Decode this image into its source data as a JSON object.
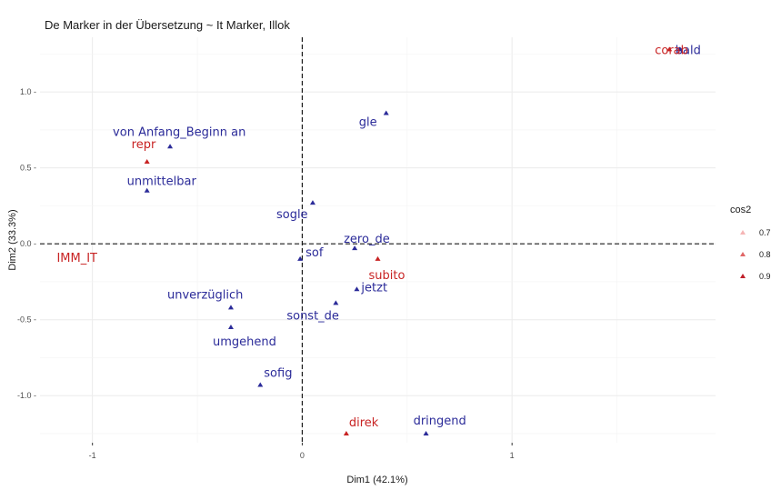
{
  "chart_data": {
    "type": "scatter",
    "title": "De Marker in der Übersetzung ~ It Marker, Illok",
    "xlabel": "Dim1 (42.1%)",
    "ylabel": "Dim2 (33.3%)",
    "xlim": [
      -1.25,
      1.97
    ],
    "ylim": [
      -1.31,
      1.36
    ],
    "xticks": [
      -1,
      0,
      1
    ],
    "xtick_labels": [
      "-1",
      "0",
      "1"
    ],
    "yticks": [
      -1.0,
      -0.5,
      0.0,
      0.5,
      1.0
    ],
    "ytick_labels": [
      "-1.0 -",
      "-0.5 -",
      "0.0 -",
      "0.5 -",
      "1.0 -"
    ],
    "reference_lines": {
      "x": 0,
      "y": 0
    },
    "grid": true,
    "legend": {
      "title": "cos2",
      "position": "right",
      "entries": [
        {
          "label": "0.7",
          "color": "#f5b5b5"
        },
        {
          "label": "0.8",
          "color": "#e06666"
        },
        {
          "label": "0.9",
          "color": "#c0202a"
        }
      ]
    },
    "colors": {
      "blue_group": "#2b2b99",
      "red_group": "#c82323"
    },
    "points": [
      {
        "label": "von Anfang_Beginn an",
        "x": -0.63,
        "y": 0.64,
        "group": "blue"
      },
      {
        "label": "unmittelbar",
        "x": -0.74,
        "y": 0.35,
        "group": "blue"
      },
      {
        "label": "gle",
        "x": 0.4,
        "y": 0.86,
        "group": "blue"
      },
      {
        "label": "sogle",
        "x": 0.05,
        "y": 0.27,
        "group": "blue"
      },
      {
        "label": "zero_de",
        "x": 0.25,
        "y": -0.03,
        "group": "blue"
      },
      {
        "label": "sof",
        "x": -0.01,
        "y": -0.1,
        "group": "blue"
      },
      {
        "label": "jetzt",
        "x": 0.26,
        "y": -0.3,
        "group": "blue"
      },
      {
        "label": "sonst_de",
        "x": 0.16,
        "y": -0.39,
        "group": "blue"
      },
      {
        "label": "unverzüglich",
        "x": -0.34,
        "y": -0.42,
        "group": "blue"
      },
      {
        "label": "umgehend",
        "x": -0.34,
        "y": -0.55,
        "group": "blue"
      },
      {
        "label": "sofig",
        "x": -0.2,
        "y": -0.93,
        "group": "blue"
      },
      {
        "label": "dringend",
        "x": 0.59,
        "y": -1.25,
        "group": "blue"
      },
      {
        "label": "bald",
        "x": 1.8,
        "y": 1.28,
        "group": "blue"
      },
      {
        "label": "repr",
        "x": -0.74,
        "y": 0.54,
        "group": "red"
      },
      {
        "label": "IMM_IT",
        "x": -1.17,
        "y": -0.09,
        "group": "red"
      },
      {
        "label": "subito",
        "x": 0.36,
        "y": -0.1,
        "group": "red"
      },
      {
        "label": "direk",
        "x": 0.21,
        "y": -1.25,
        "group": "red"
      },
      {
        "label": "corab",
        "x": 1.75,
        "y": 1.28,
        "group": "red"
      }
    ]
  }
}
